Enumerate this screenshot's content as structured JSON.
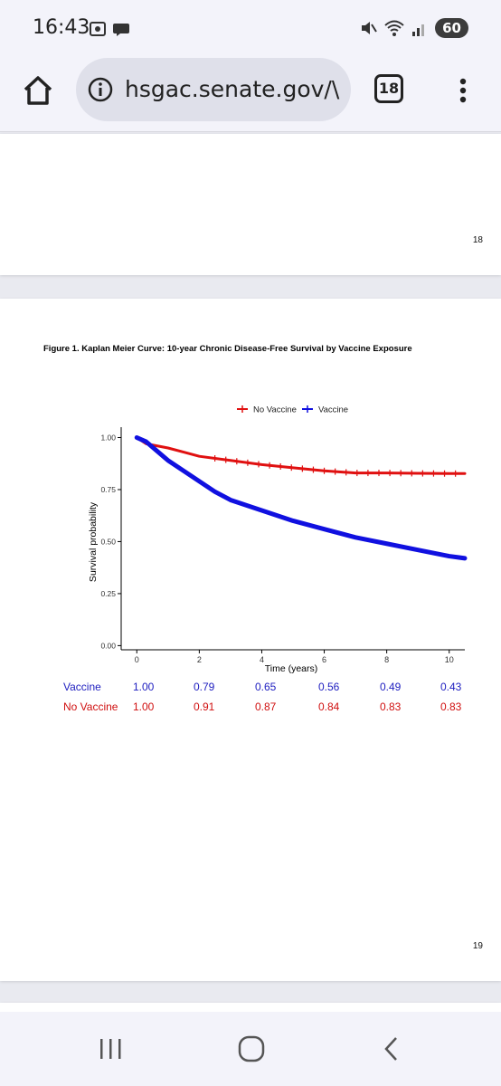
{
  "status_bar": {
    "time": "16:43",
    "battery": "60"
  },
  "browser": {
    "url": "hsgac.senate.gov/\\",
    "tab_count": "18"
  },
  "pages": {
    "previous_page_number": "18",
    "current_page_number": "19"
  },
  "figure": {
    "caption": "Figure 1. Kaplan Meier Curve: 10-year Chronic Disease-Free Survival by Vaccine Exposure",
    "risk_table": {
      "rows": [
        {
          "label": "Vaccine",
          "color": "#2020c0",
          "values": [
            "1.00",
            "0.79",
            "0.65",
            "0.56",
            "0.49",
            "0.43"
          ]
        },
        {
          "label": "No Vaccine",
          "color": "#d01010",
          "values": [
            "1.00",
            "0.91",
            "0.87",
            "0.84",
            "0.83",
            "0.83"
          ]
        }
      ]
    }
  },
  "chart_data": {
    "type": "line",
    "title": "",
    "xlabel": "Time (years)",
    "ylabel": "Survival probability",
    "xlim": [
      -0.5,
      10.5
    ],
    "ylim": [
      -0.02,
      1.05
    ],
    "x_ticks": [
      0,
      2,
      4,
      6,
      8,
      10
    ],
    "x_tick_labels": [
      "0",
      "2",
      "4",
      "6",
      "8",
      "10"
    ],
    "y_ticks": [
      0.0,
      0.25,
      0.5,
      0.75,
      1.0
    ],
    "y_tick_labels": [
      "0.00",
      "0.25",
      "0.50",
      "0.75",
      "1.00"
    ],
    "legend_position": "top",
    "series": [
      {
        "name": "No Vaccine",
        "color": "#e01010",
        "x": [
          0,
          0.3,
          1,
          1.5,
          2,
          3,
          4,
          5,
          6,
          7,
          8,
          9,
          10,
          10.5
        ],
        "y": [
          1.0,
          0.97,
          0.95,
          0.93,
          0.91,
          0.89,
          0.87,
          0.855,
          0.84,
          0.83,
          0.83,
          0.828,
          0.827,
          0.827
        ]
      },
      {
        "name": "Vaccine",
        "color": "#1010e0",
        "x": [
          0,
          0.3,
          1,
          1.5,
          2,
          2.5,
          3,
          4,
          5,
          6,
          7,
          8,
          9,
          10,
          10.5
        ],
        "y": [
          1.0,
          0.98,
          0.89,
          0.84,
          0.79,
          0.74,
          0.7,
          0.65,
          0.6,
          0.56,
          0.52,
          0.49,
          0.46,
          0.43,
          0.42
        ]
      }
    ]
  }
}
